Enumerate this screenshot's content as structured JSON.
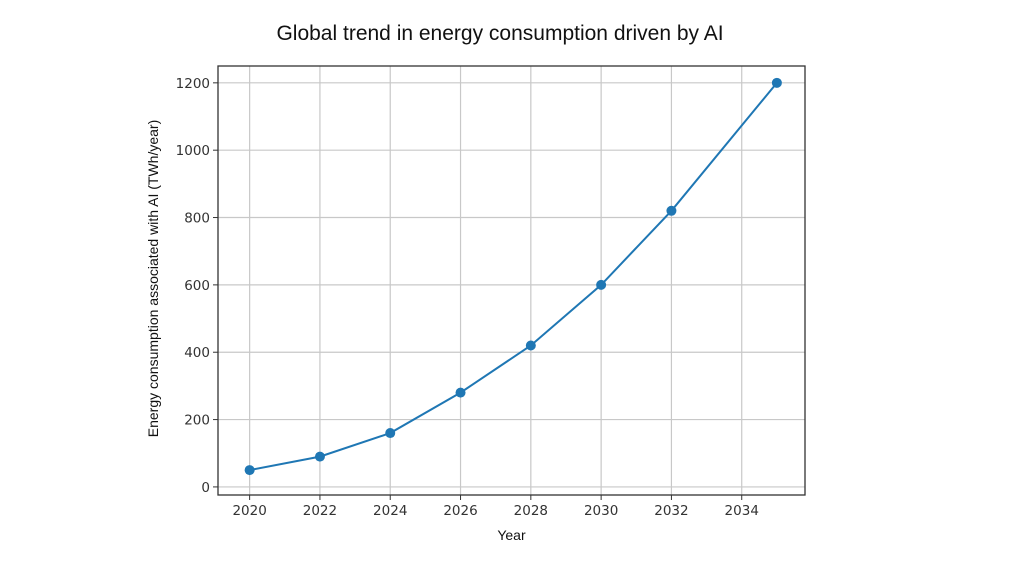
{
  "chart_data": {
    "type": "line",
    "title": "Global trend in energy consumption driven by AI",
    "xlabel": "Year",
    "ylabel": "Energy consumption associated with AI (TWh/year)",
    "x": [
      2020,
      2022,
      2024,
      2026,
      2028,
      2030,
      2032,
      2035
    ],
    "series": [
      {
        "values": [
          50,
          90,
          160,
          280,
          420,
          600,
          820,
          1200
        ],
        "color": "#1f77b4",
        "marker": "circle"
      }
    ],
    "xticks": [
      2020,
      2022,
      2024,
      2026,
      2028,
      2030,
      2032,
      2034
    ],
    "yticks": [
      0,
      200,
      400,
      600,
      800,
      1000,
      1200
    ],
    "xlim": [
      2019.1,
      2035.8
    ],
    "ylim": [
      -24,
      1250
    ],
    "grid": true,
    "legend": "none"
  }
}
